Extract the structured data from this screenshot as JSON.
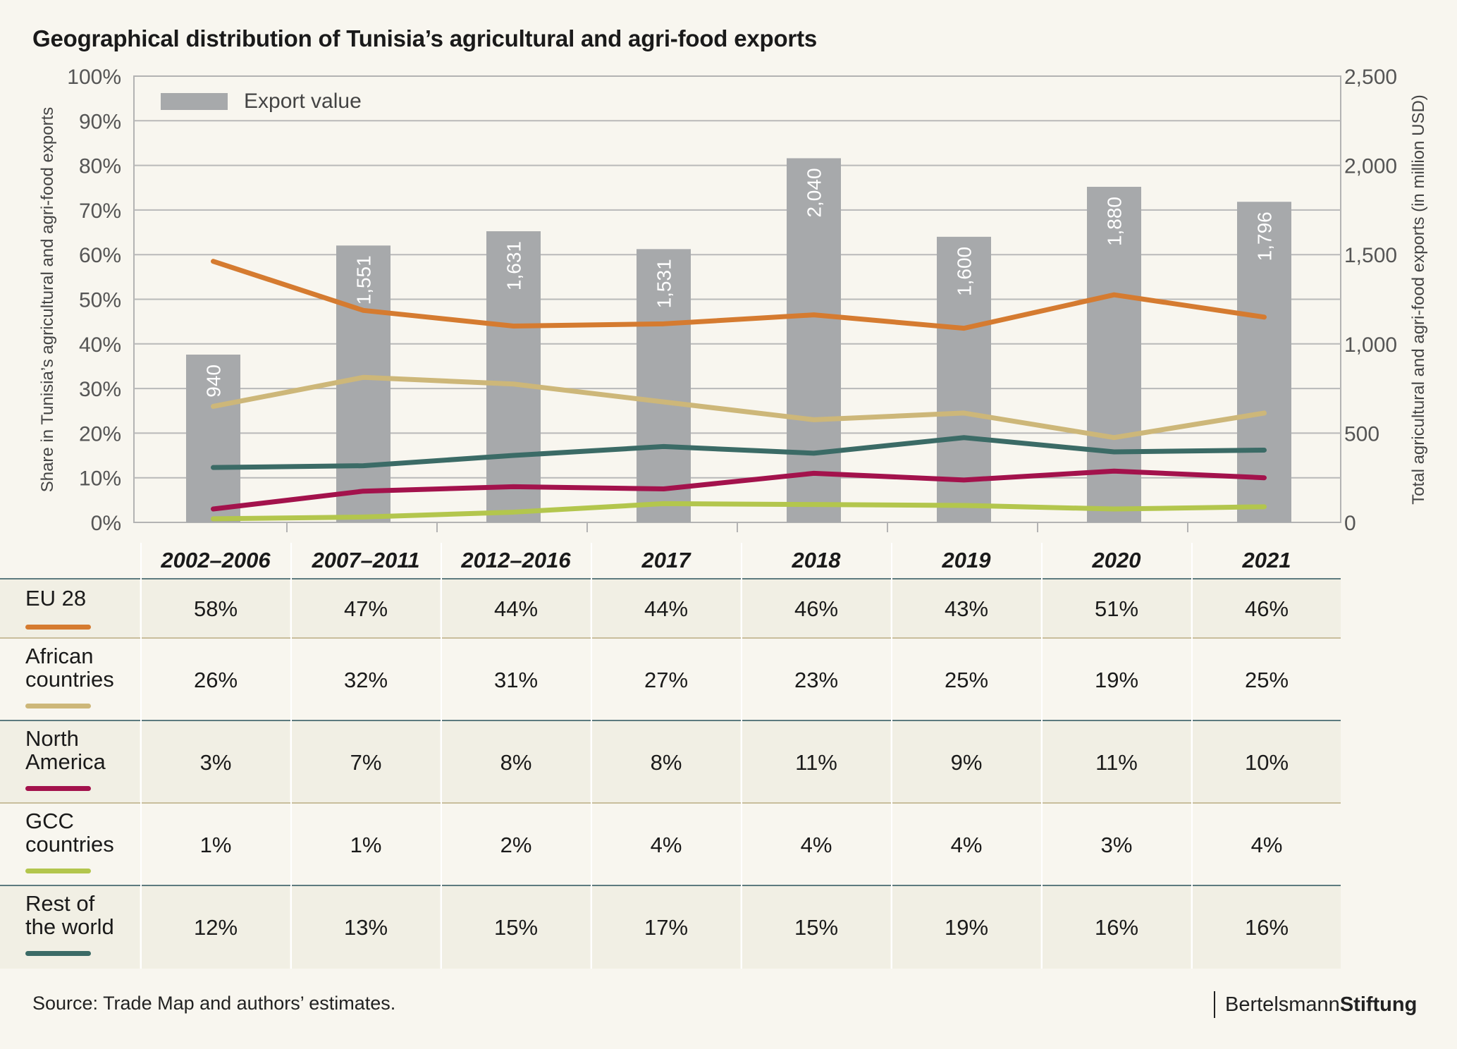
{
  "title": "Geographical distribution of Tunisia’s agricultural and agri-food exports",
  "source": "Source: Trade Map and authors’ estimates.",
  "brand": {
    "light": "Bertelsmann",
    "bold": "Stiftung"
  },
  "legend": {
    "bar_label": "Export value"
  },
  "colors": {
    "bar": "#a7a9ab",
    "eu": "#d57b30",
    "africa": "#cdb779",
    "north_america": "#a3124c",
    "gcc": "#b3c64d",
    "rest": "#3b6b66",
    "background": "#f8f6ef",
    "row_shade": "#f1efe4"
  },
  "chart_data": {
    "type": "bar",
    "title": "Geographical distribution of Tunisia’s agricultural and agri-food exports",
    "categories": [
      "2002–2006",
      "2007–2011",
      "2012–2016",
      "2017",
      "2018",
      "2019",
      "2020",
      "2021"
    ],
    "bar_series": {
      "name": "Export value",
      "values": [
        940,
        1551,
        1631,
        1531,
        2040,
        1600,
        1880,
        1796
      ]
    },
    "bar_labels": [
      "940",
      "1,551",
      "1,631",
      "1,531",
      "2,040",
      "1,600",
      "1,880",
      "1,796"
    ],
    "line_series": [
      {
        "name": "EU 28",
        "key": "eu",
        "values": [
          58,
          47,
          44,
          44,
          46,
          43,
          51,
          46
        ]
      },
      {
        "name": "African countries",
        "key": "africa",
        "values": [
          26,
          32,
          31,
          27,
          23,
          25,
          19,
          25
        ]
      },
      {
        "name": "North America",
        "key": "north_america",
        "values": [
          3,
          7,
          8,
          8,
          11,
          9,
          11,
          10
        ]
      },
      {
        "name": "GCC countries",
        "key": "gcc",
        "values": [
          1,
          1,
          2,
          4,
          4,
          4,
          3,
          4
        ]
      },
      {
        "name": "Rest of the world",
        "key": "rest",
        "values": [
          12,
          13,
          15,
          17,
          15,
          19,
          16,
          16
        ]
      }
    ],
    "line_points_plotted": {
      "eu": [
        58.5,
        47.5,
        44,
        44.5,
        46.5,
        43.5,
        51,
        46
      ],
      "africa": [
        26,
        32.5,
        31,
        27,
        23,
        24.5,
        19,
        24.5
      ],
      "north_america": [
        3,
        7,
        8,
        7.5,
        11,
        9.5,
        11.5,
        10
      ],
      "gcc": [
        0.8,
        1.2,
        2.3,
        4.2,
        4,
        3.8,
        3,
        3.5
      ],
      "rest": [
        12.3,
        12.7,
        15,
        17,
        15.5,
        19,
        15.8,
        16.2
      ]
    },
    "ylabel_left": "Share in Tunisia’s agricultural and agri-food exports",
    "ylabel_right": "Total agricultural and agri-food exports (in million USD)",
    "ylim_left": [
      0,
      100
    ],
    "ylim_right": [
      0,
      2500
    ],
    "yticks_left": [
      "0%",
      "10%",
      "20%",
      "30%",
      "40%",
      "50%",
      "60%",
      "70%",
      "80%",
      "90%",
      "100%"
    ],
    "yticks_right": [
      "0",
      "500",
      "1,000",
      "1,500",
      "2,000",
      "2,500"
    ],
    "grid": true,
    "legend_position": "top-left"
  },
  "table": {
    "rows": [
      {
        "key": "eu",
        "label_lines": [
          "EU 28"
        ],
        "values": [
          "58%",
          "47%",
          "44%",
          "44%",
          "46%",
          "43%",
          "51%",
          "46%"
        ]
      },
      {
        "key": "africa",
        "label_lines": [
          "African",
          "countries"
        ],
        "values": [
          "26%",
          "32%",
          "31%",
          "27%",
          "23%",
          "25%",
          "19%",
          "25%"
        ]
      },
      {
        "key": "north_america",
        "label_lines": [
          "North",
          "America"
        ],
        "values": [
          "3%",
          "7%",
          "8%",
          "8%",
          "11%",
          "9%",
          "11%",
          "10%"
        ]
      },
      {
        "key": "gcc",
        "label_lines": [
          "GCC",
          "countries"
        ],
        "values": [
          "1%",
          "1%",
          "2%",
          "4%",
          "4%",
          "4%",
          "3%",
          "4%"
        ]
      },
      {
        "key": "rest",
        "label_lines": [
          "Rest of",
          "the world"
        ],
        "values": [
          "12%",
          "13%",
          "15%",
          "17%",
          "15%",
          "19%",
          "16%",
          "16%"
        ]
      }
    ]
  }
}
